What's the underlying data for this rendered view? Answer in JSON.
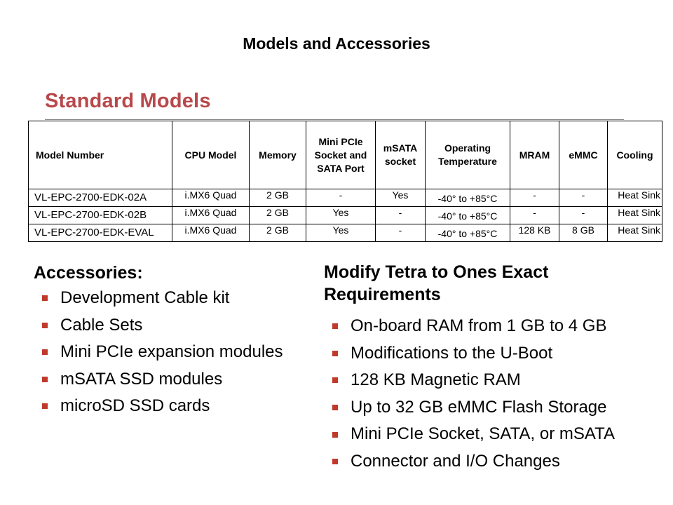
{
  "title": "Models and Accessories",
  "standard_models": {
    "heading": "Standard Models",
    "columns": [
      "Model Number",
      "CPU Model",
      "Memory",
      "Mini PCIe Socket and SATA Port",
      "mSATA socket",
      "Operating Temperature",
      "MRAM",
      "eMMC",
      "Cooling"
    ],
    "rows": [
      [
        "VL-EPC-2700-EDK-02A",
        "i.MX6 Quad",
        "2 GB",
        "-",
        "Yes",
        "-40° to +85°C",
        "-",
        "-",
        "Heat Sink"
      ],
      [
        "VL-EPC-2700-EDK-02B",
        "i.MX6 Quad",
        "2 GB",
        "Yes",
        "-",
        "-40° to +85°C",
        "-",
        "-",
        "Heat Sink"
      ],
      [
        "VL-EPC-2700-EDK-EVAL",
        "i.MX6 Quad",
        "2 GB",
        "Yes",
        "-",
        "-40° to +85°C",
        "128 KB",
        "8 GB",
        "Heat Sink"
      ]
    ]
  },
  "accessories": {
    "heading": "Accessories:",
    "items": [
      "Development Cable kit",
      "Cable Sets",
      "Mini PCIe expansion modules",
      "mSATA SSD modules",
      "microSD SSD cards"
    ]
  },
  "modify": {
    "heading": "Modify Tetra to Ones Exact Requirements",
    "items": [
      "On-board RAM from 1 GB to 4 GB",
      "Modifications to the U-Boot",
      "128 KB Magnetic RAM",
      "Up to 32 GB eMMC Flash Storage",
      "Mini PCIe Socket, SATA, or mSATA",
      "Connector and I/O Changes"
    ]
  },
  "colors": {
    "accent": "#b8484a",
    "bullet": "#c0392b"
  }
}
